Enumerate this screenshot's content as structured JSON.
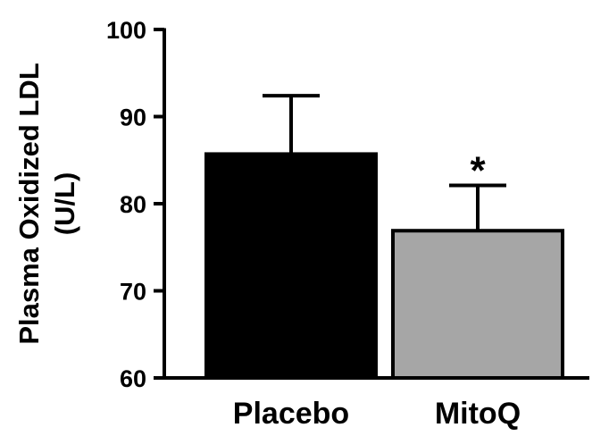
{
  "chart_data": {
    "type": "bar",
    "categories": [
      "Placebo",
      "MitoQ"
    ],
    "values": [
      85.7,
      76.9
    ],
    "errors": [
      6.7,
      5.2
    ],
    "bar_colors": [
      "#000000",
      "#a6a6a6"
    ],
    "ylabel_lines": [
      "Plasma Oxidized LDL",
      "(U/L)"
    ],
    "ylim": [
      60,
      100
    ],
    "yticks": [
      60,
      70,
      80,
      90,
      100
    ],
    "ytick_labels": [
      "60",
      "70",
      "80",
      "90",
      "100"
    ],
    "annotations": [
      {
        "category": "MitoQ",
        "text": "*"
      }
    ],
    "grid": false,
    "legend": "none"
  }
}
